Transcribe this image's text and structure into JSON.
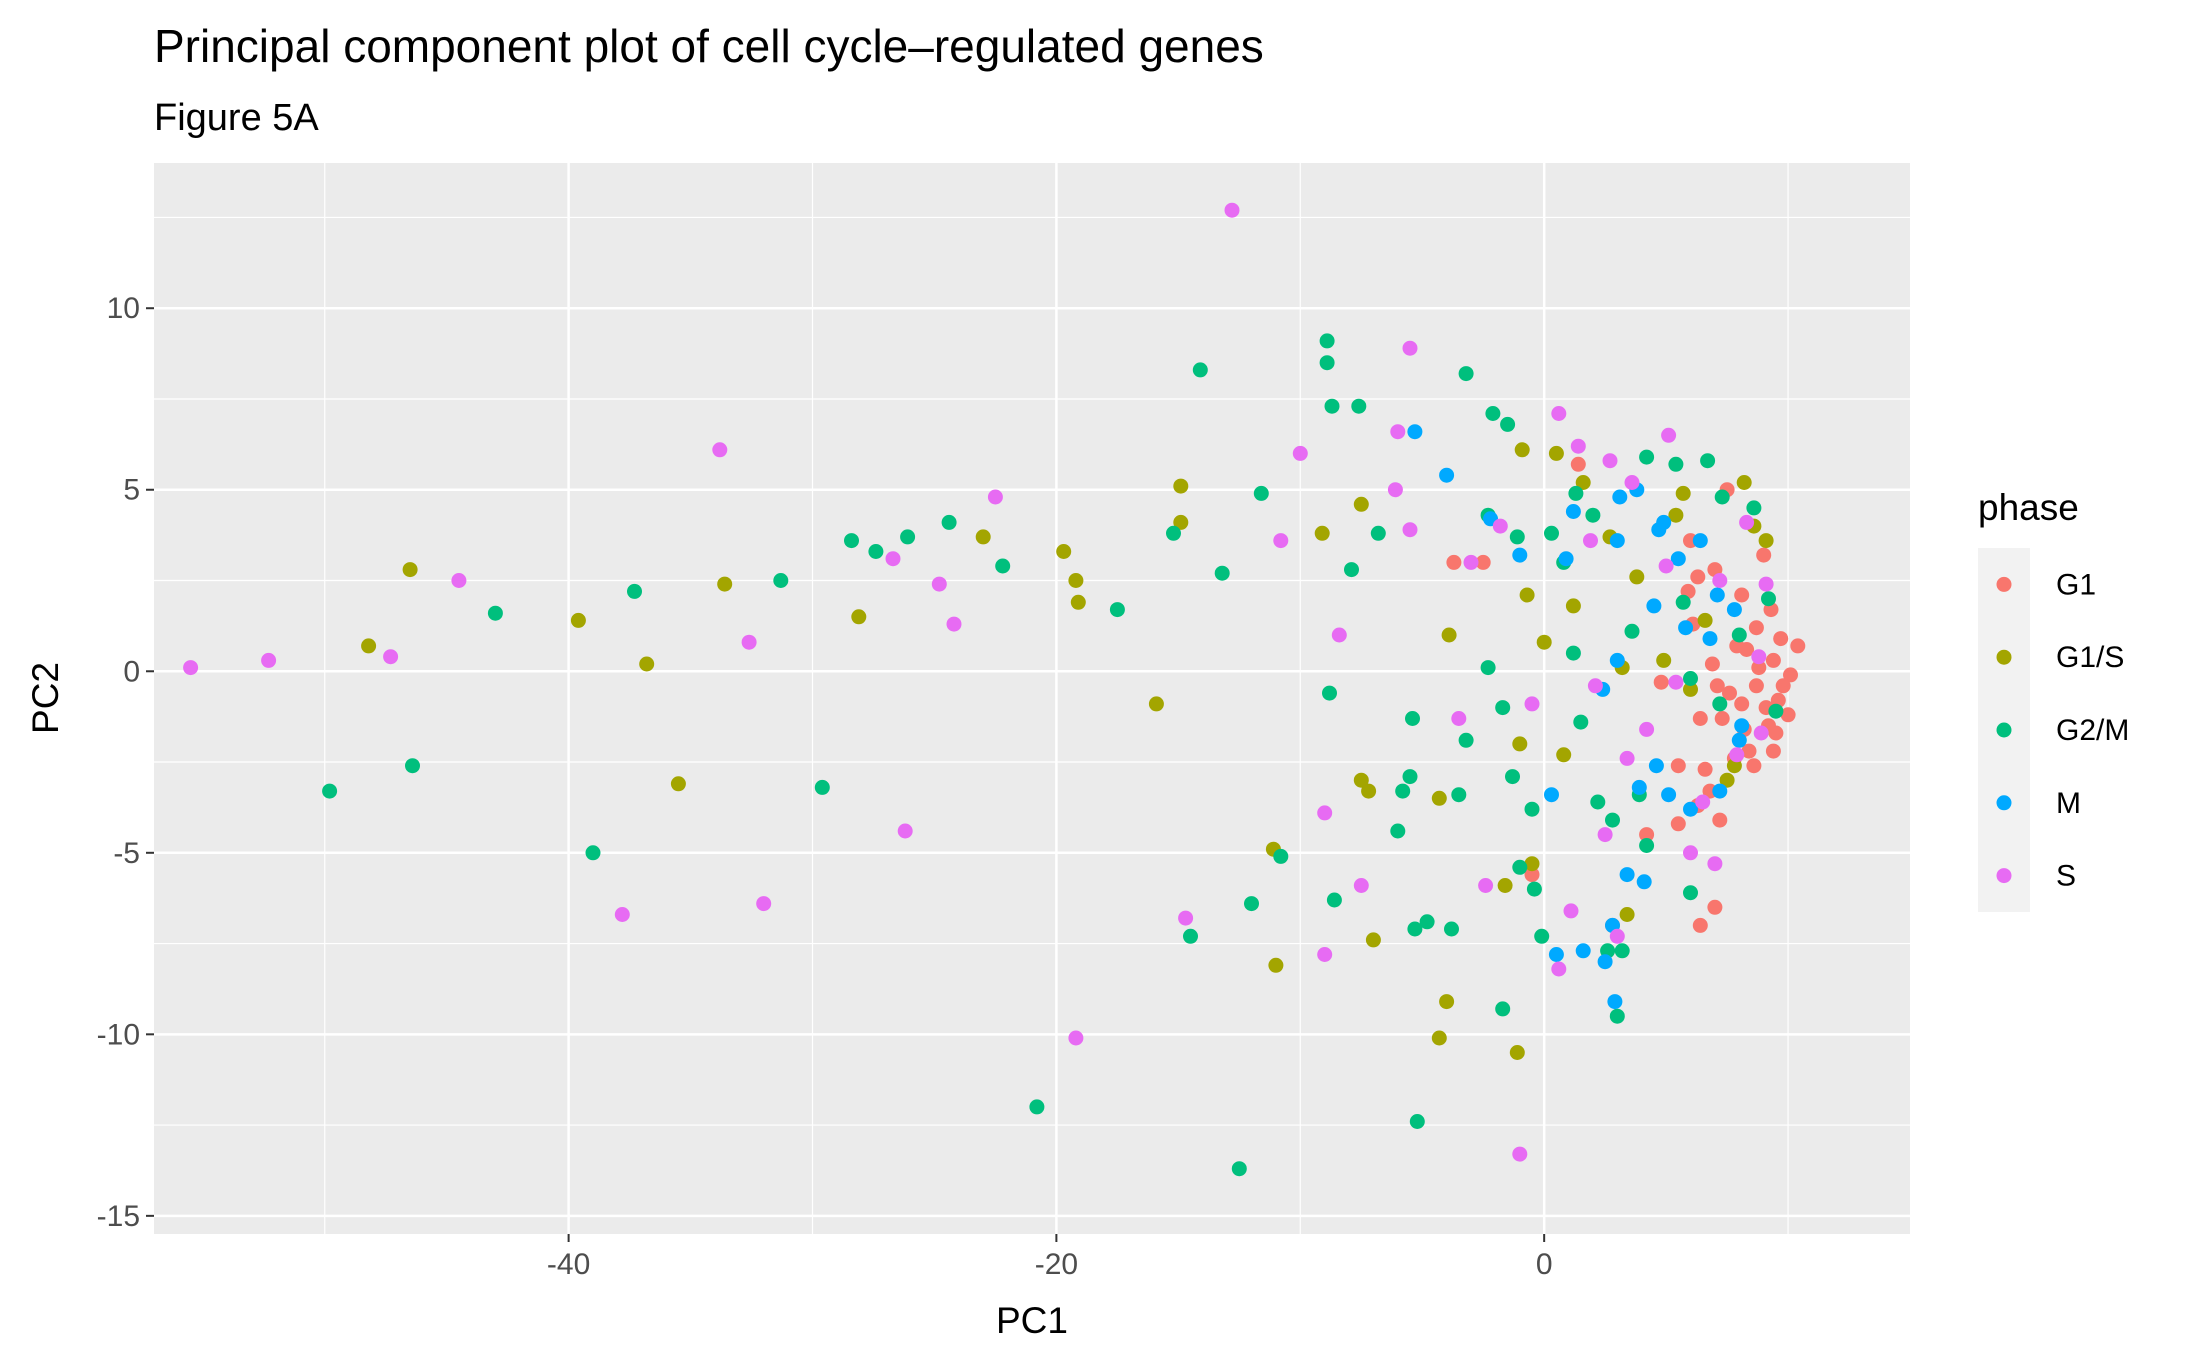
{
  "chart_data": {
    "type": "scatter",
    "title": "Principal component plot of cell cycle–regulated genes",
    "subtitle": "Figure 5A",
    "xlabel": "PC1",
    "ylabel": "PC2",
    "xlim": [
      -57,
      15
    ],
    "ylim": [
      -15.5,
      14
    ],
    "xticks": [
      -40,
      -20,
      0
    ],
    "xtick_labels": [
      "-40",
      "-20",
      "0"
    ],
    "yticks": [
      -15,
      -10,
      -5,
      0,
      5,
      10
    ],
    "ytick_labels": [
      "-15",
      "-10",
      "-5",
      "0",
      "5",
      "10"
    ],
    "grid": true,
    "legend": {
      "title": "phase",
      "position": "right"
    },
    "series": [
      {
        "name": "G1",
        "color": "#F8766D",
        "points": [
          [
            -3.7,
            3.0
          ],
          [
            -2.5,
            3.0
          ],
          [
            -0.5,
            -5.6
          ],
          [
            1.4,
            5.7
          ],
          [
            2.8,
            -7.0
          ],
          [
            4.2,
            -4.5
          ],
          [
            4.8,
            -0.3
          ],
          [
            5.5,
            -4.2
          ],
          [
            6.3,
            -3.7
          ],
          [
            7.0,
            -6.5
          ],
          [
            6.4,
            -7.0
          ],
          [
            6.0,
            3.6
          ],
          [
            7.0,
            2.8
          ],
          [
            7.5,
            5.0
          ],
          [
            8.1,
            2.1
          ],
          [
            8.3,
            0.6
          ],
          [
            8.7,
            -0.4
          ],
          [
            9.1,
            -1.0
          ],
          [
            9.4,
            0.3
          ],
          [
            9.6,
            -0.8
          ],
          [
            10.0,
            -1.2
          ],
          [
            10.4,
            0.7
          ],
          [
            10.1,
            -0.1
          ],
          [
            9.4,
            -2.2
          ],
          [
            8.6,
            -2.6
          ],
          [
            7.8,
            -2.4
          ],
          [
            7.3,
            -1.3
          ],
          [
            7.6,
            -0.6
          ],
          [
            8.2,
            -1.6
          ],
          [
            8.7,
            1.2
          ],
          [
            9.3,
            1.7
          ],
          [
            9.0,
            3.2
          ],
          [
            6.4,
            -1.3
          ],
          [
            6.9,
            0.2
          ],
          [
            7.2,
            -4.1
          ],
          [
            6.6,
            -2.7
          ],
          [
            5.5,
            -2.6
          ],
          [
            8.4,
            -2.2
          ],
          [
            9.2,
            -1.5
          ],
          [
            9.8,
            -0.4
          ],
          [
            8.8,
            0.1
          ],
          [
            7.9,
            0.7
          ],
          [
            7.1,
            -0.4
          ],
          [
            6.1,
            1.3
          ],
          [
            6.8,
            -3.3
          ],
          [
            9.5,
            -1.7
          ],
          [
            8.1,
            -0.9
          ],
          [
            9.7,
            0.9
          ],
          [
            6.3,
            2.6
          ],
          [
            5.9,
            2.2
          ]
        ]
      },
      {
        "name": "G1/S",
        "color": "#A3A500",
        "points": [
          [
            -46.5,
            2.8
          ],
          [
            -48.2,
            0.7
          ],
          [
            -39.6,
            1.4
          ],
          [
            -36.8,
            0.2
          ],
          [
            -35.5,
            -3.1
          ],
          [
            -33.6,
            2.4
          ],
          [
            -28.1,
            1.5
          ],
          [
            -23,
            3.7
          ],
          [
            -19.7,
            3.3
          ],
          [
            -19.2,
            2.5
          ],
          [
            -19.1,
            1.9
          ],
          [
            -15.9,
            -0.9
          ],
          [
            -14.9,
            5.1
          ],
          [
            -14.9,
            4.1
          ],
          [
            -11.1,
            -4.9
          ],
          [
            -11.0,
            -8.1
          ],
          [
            -9.1,
            3.8
          ],
          [
            -7.5,
            -3.0
          ],
          [
            -7.2,
            -3.3
          ],
          [
            -7.5,
            4.6
          ],
          [
            -7.0,
            -7.4
          ],
          [
            -4.3,
            -3.5
          ],
          [
            -3.9,
            1.0
          ],
          [
            -4.0,
            -9.1
          ],
          [
            -4.3,
            -10.1
          ],
          [
            -1.6,
            -5.9
          ],
          [
            -1.1,
            -10.5
          ],
          [
            -0.9,
            6.1
          ],
          [
            -0.7,
            2.1
          ],
          [
            -0.5,
            -5.3
          ],
          [
            0.5,
            6.0
          ],
          [
            1.2,
            1.8
          ],
          [
            1.6,
            5.2
          ],
          [
            2.7,
            3.7
          ],
          [
            3.2,
            0.1
          ],
          [
            3.8,
            2.6
          ],
          [
            4.9,
            0.3
          ],
          [
            5.4,
            4.3
          ],
          [
            6.0,
            -0.5
          ],
          [
            7.5,
            -3.0
          ],
          [
            8.2,
            5.2
          ],
          [
            9.1,
            3.6
          ],
          [
            6.6,
            1.4
          ],
          [
            7.8,
            -2.6
          ],
          [
            3.4,
            -6.7
          ],
          [
            0.8,
            -2.3
          ],
          [
            -1.0,
            -2.0
          ],
          [
            0.0,
            0.8
          ],
          [
            5.7,
            4.9
          ],
          [
            8.6,
            4.0
          ]
        ]
      },
      {
        "name": "G2/M",
        "color": "#00BF7D",
        "points": [
          [
            -49.8,
            -3.3
          ],
          [
            -46.4,
            -2.6
          ],
          [
            -43.0,
            1.6
          ],
          [
            -39.0,
            -5.0
          ],
          [
            -37.3,
            2.2
          ],
          [
            -31.3,
            2.5
          ],
          [
            -29.6,
            -3.2
          ],
          [
            -28.4,
            3.6
          ],
          [
            -27.4,
            3.3
          ],
          [
            -26.1,
            3.7
          ],
          [
            -24.4,
            4.1
          ],
          [
            -22.2,
            2.9
          ],
          [
            -20.8,
            -12.0
          ],
          [
            -17.5,
            1.7
          ],
          [
            -14.1,
            8.3
          ],
          [
            -15.2,
            3.8
          ],
          [
            -14.5,
            -7.3
          ],
          [
            -13.2,
            2.7
          ],
          [
            -12.5,
            -13.7
          ],
          [
            -12.0,
            -6.4
          ],
          [
            -11.6,
            4.9
          ],
          [
            -10.8,
            -5.1
          ],
          [
            -8.9,
            9.1
          ],
          [
            -8.9,
            8.5
          ],
          [
            -8.7,
            7.3
          ],
          [
            -8.6,
            -6.3
          ],
          [
            -8.8,
            -0.6
          ],
          [
            -7.9,
            2.8
          ],
          [
            -7.6,
            7.3
          ],
          [
            -6.8,
            3.8
          ],
          [
            -6.0,
            -4.4
          ],
          [
            -5.8,
            -3.3
          ],
          [
            -5.4,
            -1.3
          ],
          [
            -5.5,
            -2.9
          ],
          [
            -5.3,
            -7.1
          ],
          [
            -4.8,
            -6.9
          ],
          [
            -3.2,
            -1.9
          ],
          [
            -3.5,
            -3.4
          ],
          [
            -3.8,
            -7.1
          ],
          [
            -2.1,
            7.1
          ],
          [
            -1.7,
            -1.0
          ],
          [
            -1.0,
            -5.4
          ],
          [
            -1.3,
            -2.9
          ],
          [
            -0.1,
            -7.3
          ],
          [
            0.3,
            3.8
          ],
          [
            1.2,
            0.5
          ],
          [
            1.5,
            -1.4
          ],
          [
            2.2,
            -3.6
          ],
          [
            2.8,
            -4.1
          ],
          [
            3.0,
            -9.5
          ],
          [
            3.2,
            -7.7
          ],
          [
            4.2,
            5.9
          ],
          [
            5.4,
            5.7
          ],
          [
            5.7,
            1.9
          ],
          [
            6.0,
            -0.2
          ],
          [
            6.7,
            5.8
          ],
          [
            7.3,
            4.8
          ],
          [
            8.0,
            1.0
          ],
          [
            8.6,
            4.5
          ],
          [
            9.2,
            2.0
          ],
          [
            9.5,
            -1.1
          ],
          [
            7.2,
            -0.9
          ],
          [
            6.0,
            -6.1
          ],
          [
            2.6,
            -7.7
          ],
          [
            4.2,
            -4.8
          ],
          [
            -0.5,
            -3.8
          ],
          [
            -2.3,
            0.1
          ],
          [
            -2.3,
            4.3
          ],
          [
            0.8,
            3.0
          ],
          [
            -1.1,
            3.7
          ],
          [
            -0.4,
            -6.0
          ],
          [
            1.3,
            4.9
          ],
          [
            -1.7,
            -9.3
          ],
          [
            -5.2,
            -12.4
          ],
          [
            -3.2,
            8.2
          ],
          [
            -1.5,
            6.8
          ],
          [
            3.6,
            1.1
          ],
          [
            3.9,
            -3.4
          ],
          [
            2.0,
            4.3
          ]
        ]
      },
      {
        "name": "M",
        "color": "#00A9FF",
        "points": [
          [
            -5.3,
            6.6
          ],
          [
            -4.0,
            5.4
          ],
          [
            -2.2,
            4.2
          ],
          [
            -1.0,
            3.2
          ],
          [
            0.9,
            3.1
          ],
          [
            3.0,
            3.6
          ],
          [
            3.8,
            5.0
          ],
          [
            4.9,
            4.1
          ],
          [
            5.5,
            3.1
          ],
          [
            6.4,
            3.6
          ],
          [
            7.1,
            2.1
          ],
          [
            7.8,
            1.7
          ],
          [
            8.0,
            -1.9
          ],
          [
            7.2,
            -3.3
          ],
          [
            6.0,
            -3.8
          ],
          [
            5.1,
            -3.4
          ],
          [
            4.6,
            -2.6
          ],
          [
            3.9,
            -3.2
          ],
          [
            3.4,
            -5.6
          ],
          [
            4.1,
            -5.8
          ],
          [
            2.8,
            -7.0
          ],
          [
            2.5,
            -8.0
          ],
          [
            2.9,
            -9.1
          ],
          [
            1.6,
            -7.7
          ],
          [
            0.5,
            -7.8
          ],
          [
            0.3,
            -3.4
          ],
          [
            2.4,
            -0.5
          ],
          [
            3.0,
            0.3
          ],
          [
            4.5,
            1.8
          ],
          [
            5.8,
            1.2
          ],
          [
            8.1,
            -1.5
          ],
          [
            6.8,
            0.9
          ],
          [
            4.7,
            3.9
          ],
          [
            3.1,
            4.8
          ],
          [
            1.2,
            4.4
          ]
        ]
      },
      {
        "name": "S",
        "color": "#E76BF3",
        "points": [
          [
            -55.5,
            0.1
          ],
          [
            -52.3,
            0.3
          ],
          [
            -47.3,
            0.4
          ],
          [
            -44.5,
            2.5
          ],
          [
            -37.8,
            -6.7
          ],
          [
            -33.8,
            6.1
          ],
          [
            -32.6,
            0.8
          ],
          [
            -32.0,
            -6.4
          ],
          [
            -26.7,
            3.1
          ],
          [
            -26.2,
            -4.4
          ],
          [
            -24.8,
            2.4
          ],
          [
            -24.2,
            1.3
          ],
          [
            -22.5,
            4.8
          ],
          [
            -19.2,
            -10.1
          ],
          [
            -14.7,
            -6.8
          ],
          [
            -12.8,
            12.7
          ],
          [
            -10.8,
            3.6
          ],
          [
            -10.0,
            6.0
          ],
          [
            -9.0,
            -3.9
          ],
          [
            -9.0,
            -7.8
          ],
          [
            -8.4,
            1.0
          ],
          [
            -7.5,
            -5.9
          ],
          [
            -6.1,
            5.0
          ],
          [
            -6.0,
            6.6
          ],
          [
            -5.5,
            3.9
          ],
          [
            -5.5,
            8.9
          ],
          [
            -3.5,
            -1.3
          ],
          [
            -3.0,
            3.0
          ],
          [
            -2.4,
            -5.9
          ],
          [
            -1.8,
            4.0
          ],
          [
            -1.0,
            -13.3
          ],
          [
            -0.5,
            -0.9
          ],
          [
            0.6,
            7.1
          ],
          [
            0.6,
            -8.2
          ],
          [
            1.4,
            6.2
          ],
          [
            1.9,
            3.6
          ],
          [
            2.7,
            5.8
          ],
          [
            3.4,
            -2.4
          ],
          [
            3.6,
            5.2
          ],
          [
            4.2,
            -1.6
          ],
          [
            5.1,
            6.5
          ],
          [
            5.4,
            -0.3
          ],
          [
            6.0,
            -5.0
          ],
          [
            6.5,
            -3.6
          ],
          [
            7.2,
            2.5
          ],
          [
            7.9,
            -2.3
          ],
          [
            8.3,
            4.1
          ],
          [
            8.8,
            0.4
          ],
          [
            8.9,
            -1.7
          ],
          [
            9.1,
            2.4
          ],
          [
            2.5,
            -4.5
          ],
          [
            1.1,
            -6.6
          ],
          [
            3.0,
            -7.3
          ],
          [
            5.0,
            2.9
          ],
          [
            7.0,
            -5.3
          ],
          [
            2.1,
            -0.4
          ]
        ]
      }
    ]
  }
}
